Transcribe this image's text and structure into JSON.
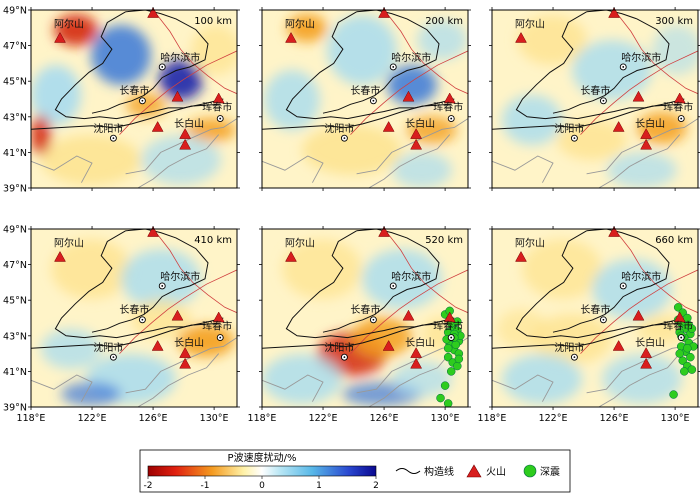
{
  "panels": [
    {
      "depth_label": "100 km",
      "show_quakes": false
    },
    {
      "depth_label": "200 km",
      "show_quakes": false
    },
    {
      "depth_label": "300 km",
      "show_quakes": false
    },
    {
      "depth_label": "410 km",
      "show_quakes": false
    },
    {
      "depth_label": "520 km",
      "show_quakes": true
    },
    {
      "depth_label": "660 km",
      "show_quakes": true
    }
  ],
  "lon_ticks": [
    "118°E",
    "122°E",
    "126°E",
    "130°E"
  ],
  "lat_ticks": [
    "49°N",
    "47°N",
    "45°N",
    "43°N",
    "41°N",
    "39°N"
  ],
  "map_labels": {
    "arshan": "阿尔山",
    "harbin": "哈尔滨市",
    "changchun": "长春市",
    "shenyang": "沈阳市",
    "changbaishan": "长白山",
    "hunchun": "珲春市"
  },
  "legend": {
    "colorbar_title": "P波速度扰动/%",
    "colorbar_ticks": [
      "-2",
      "-1",
      "0",
      "1",
      "2"
    ],
    "structure_line_label": "构造线",
    "volcano_label": "火山",
    "deep_quake_label": "深震"
  },
  "colors": {
    "strong_slow": "#d42a10",
    "slow": "#f4a020",
    "weak_slow": "#fde28c",
    "neutral": "#ffffff",
    "weak_fast": "#a8dcef",
    "fast": "#3a78d8",
    "strong_fast": "#0a18a8",
    "volcano": "#d81e1e",
    "quake": "#2ecc1e",
    "fault": "#d04040",
    "coast": "#999999"
  }
}
